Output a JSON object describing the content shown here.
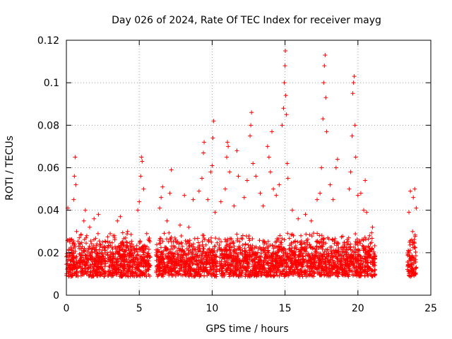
{
  "chart_data": {
    "type": "scatter",
    "title": "Day 026 of 2024, Rate Of TEC Index for receiver mayg",
    "xlabel": "GPS time / hours",
    "ylabel": "ROTI / TECUs",
    "xlim": [
      0,
      25
    ],
    "ylim": [
      0,
      0.12
    ],
    "xticks": [
      "0",
      "5",
      "10",
      "15",
      "20",
      "25"
    ],
    "yticks": [
      "0",
      "0.02",
      "0.04",
      "0.06",
      "0.08",
      "0.1",
      "0.12"
    ],
    "grid": true,
    "marker": "plus",
    "color": "#ff0000",
    "series": [
      {
        "points": [
          [
            0.1,
            0.041
          ],
          [
            0.2,
            0.018
          ],
          [
            0.3,
            0.026
          ],
          [
            0.4,
            0.012
          ],
          [
            0.5,
            0.045
          ],
          [
            0.55,
            0.056
          ],
          [
            0.6,
            0.065
          ],
          [
            0.65,
            0.052
          ],
          [
            0.7,
            0.03
          ],
          [
            1.0,
            0.022
          ],
          [
            1.2,
            0.035
          ],
          [
            1.3,
            0.04
          ],
          [
            1.4,
            0.028
          ],
          [
            1.6,
            0.032
          ],
          [
            1.9,
            0.036
          ],
          [
            2.2,
            0.038
          ],
          [
            2.5,
            0.025
          ],
          [
            2.8,
            0.02
          ],
          [
            3.3,
            0.028
          ],
          [
            3.5,
            0.035
          ],
          [
            3.7,
            0.037
          ],
          [
            4.2,
            0.03
          ],
          [
            4.5,
            0.024
          ],
          [
            4.9,
            0.04
          ],
          [
            5.0,
            0.044
          ],
          [
            5.1,
            0.056
          ],
          [
            5.15,
            0.065
          ],
          [
            5.2,
            0.063
          ],
          [
            5.3,
            0.05
          ],
          [
            6.4,
            0.041
          ],
          [
            6.5,
            0.046
          ],
          [
            6.6,
            0.051
          ],
          [
            6.9,
            0.035
          ],
          [
            7.1,
            0.048
          ],
          [
            7.2,
            0.059
          ],
          [
            7.5,
            0.026
          ],
          [
            7.8,
            0.033
          ],
          [
            8.1,
            0.047
          ],
          [
            8.4,
            0.032
          ],
          [
            8.7,
            0.045
          ],
          [
            9.1,
            0.049
          ],
          [
            9.3,
            0.055
          ],
          [
            9.4,
            0.067
          ],
          [
            9.45,
            0.072
          ],
          [
            9.7,
            0.045
          ],
          [
            9.9,
            0.058
          ],
          [
            10.0,
            0.061
          ],
          [
            10.05,
            0.074
          ],
          [
            10.1,
            0.082
          ],
          [
            10.2,
            0.039
          ],
          [
            10.6,
            0.044
          ],
          [
            10.9,
            0.05
          ],
          [
            11.0,
            0.065
          ],
          [
            11.05,
            0.072
          ],
          [
            11.1,
            0.07
          ],
          [
            11.2,
            0.058
          ],
          [
            11.5,
            0.042
          ],
          [
            11.7,
            0.068
          ],
          [
            11.8,
            0.056
          ],
          [
            12.2,
            0.046
          ],
          [
            12.4,
            0.054
          ],
          [
            12.6,
            0.075
          ],
          [
            12.65,
            0.08
          ],
          [
            12.7,
            0.086
          ],
          [
            12.8,
            0.062
          ],
          [
            13.0,
            0.056
          ],
          [
            13.3,
            0.048
          ],
          [
            13.5,
            0.042
          ],
          [
            13.8,
            0.07
          ],
          [
            13.9,
            0.065
          ],
          [
            14.0,
            0.058
          ],
          [
            14.1,
            0.077
          ],
          [
            14.2,
            0.05
          ],
          [
            14.4,
            0.047
          ],
          [
            14.6,
            0.052
          ],
          [
            14.8,
            0.08
          ],
          [
            14.9,
            0.088
          ],
          [
            14.95,
            0.1
          ],
          [
            15.0,
            0.108
          ],
          [
            15.02,
            0.115
          ],
          [
            15.05,
            0.094
          ],
          [
            15.1,
            0.085
          ],
          [
            15.15,
            0.062
          ],
          [
            15.2,
            0.055
          ],
          [
            15.5,
            0.04
          ],
          [
            15.9,
            0.036
          ],
          [
            16.4,
            0.038
          ],
          [
            16.8,
            0.035
          ],
          [
            17.2,
            0.045
          ],
          [
            17.4,
            0.048
          ],
          [
            17.5,
            0.06
          ],
          [
            17.6,
            0.083
          ],
          [
            17.65,
            0.1
          ],
          [
            17.7,
            0.108
          ],
          [
            17.75,
            0.113
          ],
          [
            17.8,
            0.093
          ],
          [
            17.85,
            0.077
          ],
          [
            18.1,
            0.052
          ],
          [
            18.3,
            0.045
          ],
          [
            18.5,
            0.06
          ],
          [
            18.6,
            0.064
          ],
          [
            19.4,
            0.05
          ],
          [
            19.5,
            0.058
          ],
          [
            19.6,
            0.075
          ],
          [
            19.65,
            0.095
          ],
          [
            19.7,
            0.1
          ],
          [
            19.75,
            0.103
          ],
          [
            19.8,
            0.08
          ],
          [
            19.85,
            0.065
          ],
          [
            20.0,
            0.047
          ],
          [
            20.2,
            0.048
          ],
          [
            20.4,
            0.04
          ],
          [
            20.5,
            0.054
          ],
          [
            20.6,
            0.039
          ],
          [
            20.8,
            0.028
          ],
          [
            21.0,
            0.032
          ],
          [
            23.5,
            0.039
          ],
          [
            23.6,
            0.049
          ],
          [
            23.75,
            0.03
          ],
          [
            23.8,
            0.046
          ],
          [
            23.9,
            0.05
          ],
          [
            24.0,
            0.041
          ]
        ],
        "segments": [
          [
            0.0,
            0.8
          ],
          [
            0.85,
            2.7
          ],
          [
            2.8,
            5.75
          ],
          [
            6.15,
            10.35
          ],
          [
            10.45,
            21.2
          ],
          [
            23.4,
            24.0
          ]
        ],
        "baseline_range": [
          0.005,
          0.03
        ]
      }
    ]
  }
}
